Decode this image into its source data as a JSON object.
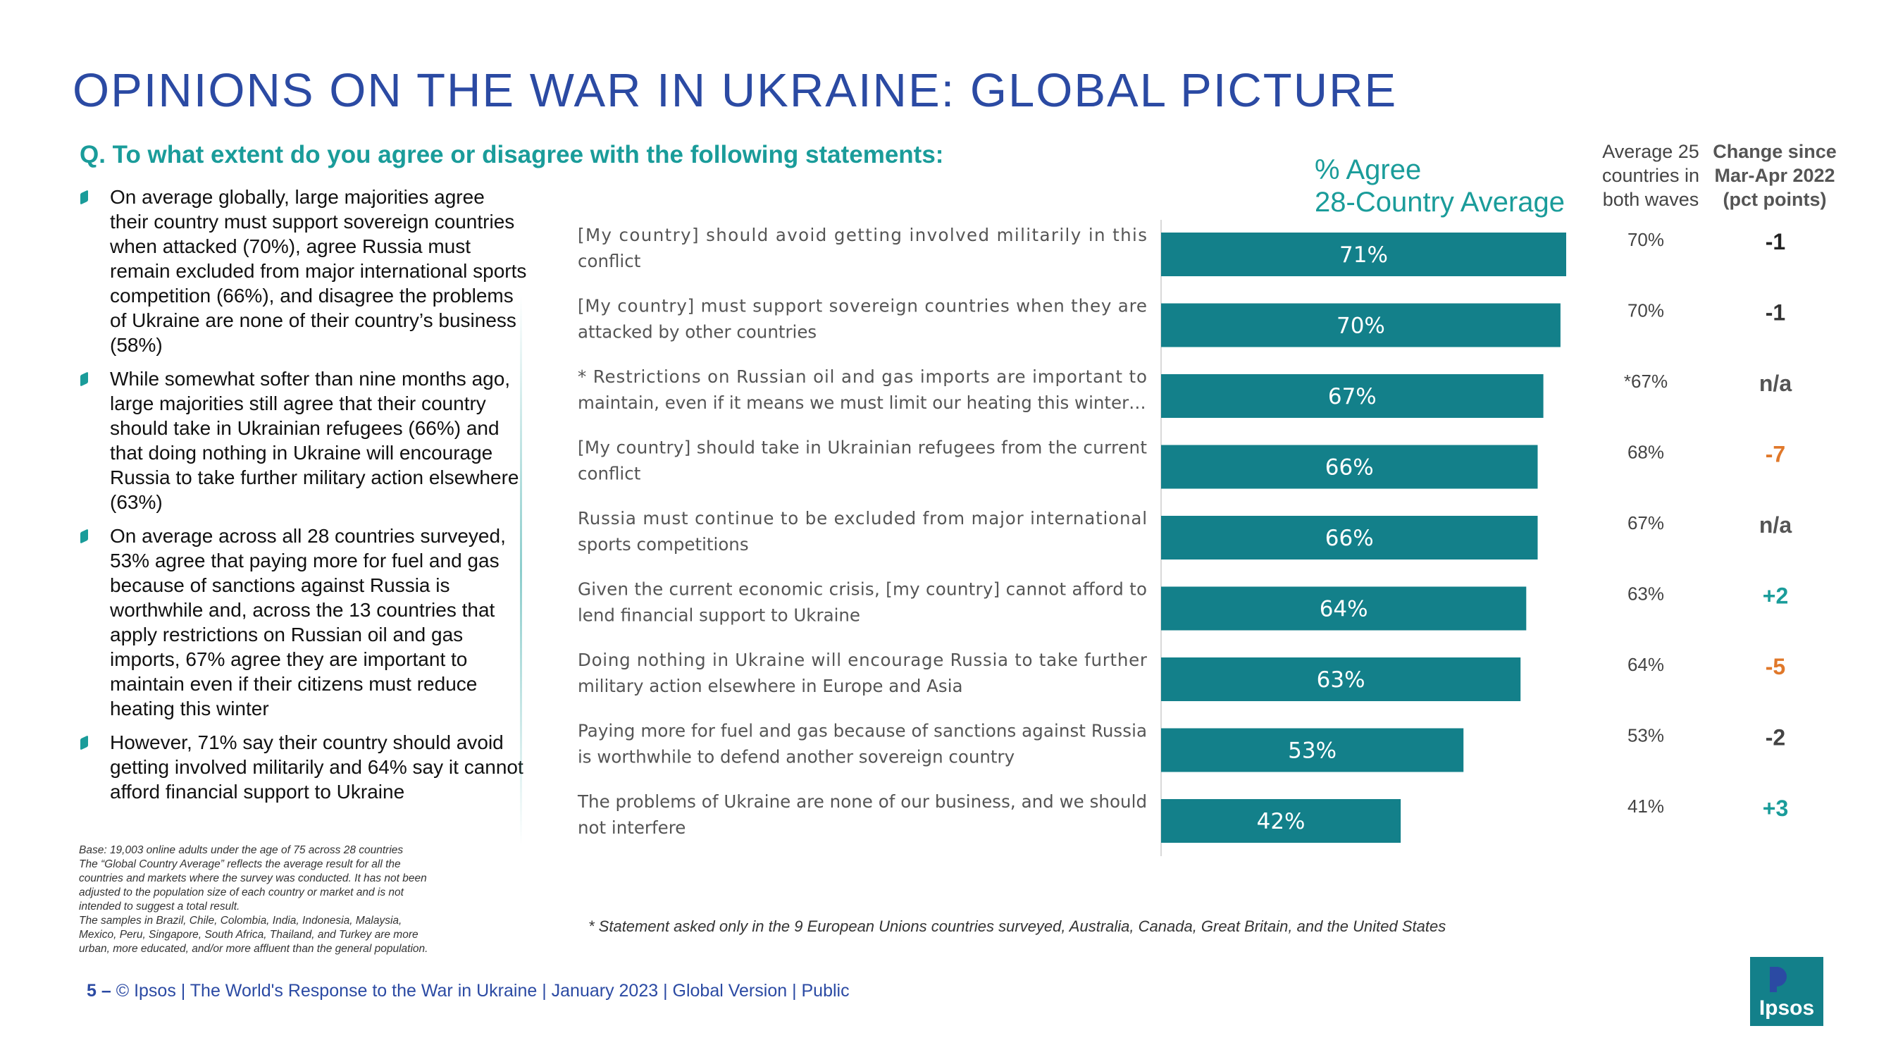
{
  "title": "OPINIONS ON THE WAR IN UKRAINE: GLOBAL PICTURE",
  "question": "Q. To what extent do you agree or disagree with the following statements:",
  "bullets": [
    "On average globally, large majorities agree their country must support sovereign countries when attacked (70%), agree Russia must remain excluded from major international sports competition (66%), and disagree the problems of Ukraine are none of their country’s business (58%)",
    "While somewhat softer than nine months ago, large majorities still agree that their country should take in Ukrainian refugees (66%) and that doing nothing in Ukraine will encourage Russia to take further military action elsewhere (63%)",
    "On average across all 28 countries surveyed, 53% agree that paying more for fuel and gas because of sanctions against Russia is worthwhile and, across the 13 countries that apply restrictions on Russian oil and gas imports, 67% agree they are important to maintain even if their citizens must reduce heating this winter",
    "However, 71% say their country should avoid getting involved militarily and 64% say it cannot afford financial support to Ukraine"
  ],
  "base_note": [
    "Base: 19,003 online adults under the age of 75 across 28 countries",
    "The “Global Country Average” reflects the average result for all the",
    "countries and markets where the survey was conducted. It has not been",
    "adjusted to the population size of each country or market and is not",
    "intended to suggest a total result.",
    "The samples in Brazil, Chile, Colombia, India, Indonesia, Malaysia,",
    "Mexico, Peru, Singapore, South Africa, Thailand, and Turkey are more",
    "urban, more educated, and/or more affluent than the general population."
  ],
  "columns": {
    "agree_line1": "% Agree",
    "agree_line2": "28-Country Average",
    "avg_line1": "Average 25",
    "avg_line2": "countries in",
    "avg_line3": "both waves",
    "chg_line1": "Change since",
    "chg_line2": "Mar-Apr 2022",
    "chg_line3": "(pct points)"
  },
  "chart_data": {
    "type": "bar",
    "orientation": "horizontal",
    "categories": [
      [
        " [My country] should avoid getting involved militarily in this",
        "conflict"
      ],
      [
        " [My country] must support sovereign countries when they are",
        "attacked by other countries"
      ],
      [
        "* Restrictions on Russian oil and gas imports are important to",
        "maintain, even if it means we must limit our heating this winter…"
      ],
      [
        " [My country] should take in Ukrainian refugees from the current",
        "conflict"
      ],
      [
        "Russia must continue to be excluded from major international",
        "sports competitions"
      ],
      [
        "Given the current economic crisis, [my  country] cannot afford to",
        "lend financial support to Ukraine"
      ],
      [
        "Doing nothing in Ukraine will encourage Russia to take further",
        "military action elsewhere in Europe and Asia"
      ],
      [
        "Paying more for fuel and gas because of sanctions against Russia",
        "is worthwhile to defend another sovereign country"
      ],
      [
        "The problems of Ukraine are none of our business, and we should",
        "not interfere"
      ]
    ],
    "values": [
      71,
      70,
      67,
      66,
      66,
      64,
      63,
      53,
      42
    ],
    "data_labels": [
      "71%",
      "70%",
      "67%",
      "66%",
      "66%",
      "64%",
      "63%",
      "53%",
      "42%"
    ],
    "avg_25_countries": [
      "70%",
      "70%",
      "*67%",
      "68%",
      "67%",
      "63%",
      "64%",
      "53%",
      "41%"
    ],
    "change": [
      "-1",
      "-1",
      "n/a",
      "-7",
      "n/a",
      "+2",
      "-5",
      "-2",
      "+3"
    ],
    "change_colors": [
      "#222222",
      "#333333",
      "#555555",
      "#e0782a",
      "#555555",
      "#1a9c9a",
      "#e0782a",
      "#444444",
      "#1a9c9a"
    ],
    "bar_color": "#13808a",
    "xlim": [
      0,
      100
    ],
    "grid": false
  },
  "footnote": "* Statement asked only in the 9 European Unions countries surveyed, Australia, Canada, Great Britain, and the United States",
  "footer": {
    "page": "5",
    "dash": "–",
    "text": " © Ipsos | The World's Response to the War in Ukraine | January 2023 | Global Version | Public"
  },
  "logo": {
    "text": "Ipsos",
    "color": "#13808a",
    "accent": "#2b4aa3"
  }
}
